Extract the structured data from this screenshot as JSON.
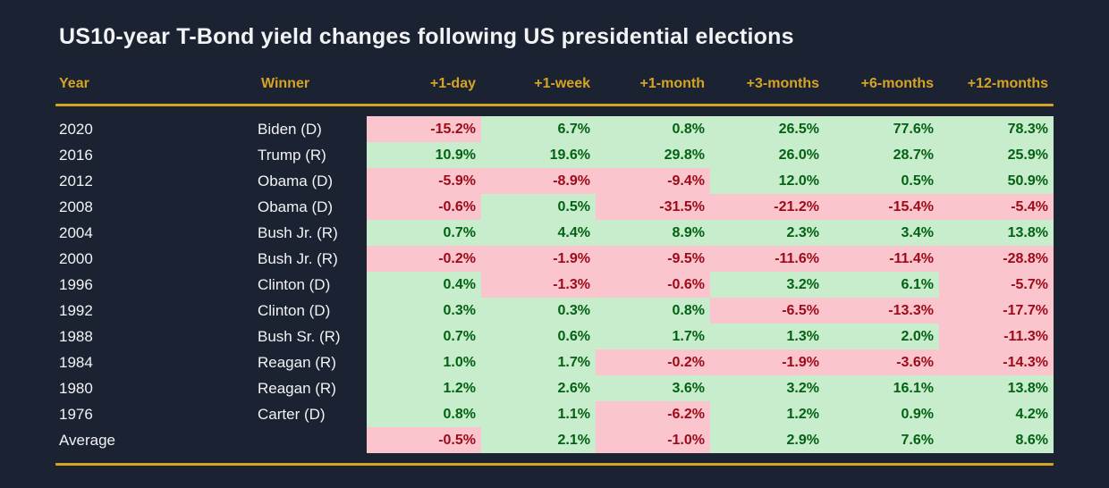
{
  "title": "US10-year T-Bond yield changes following US presidential elections",
  "colors": {
    "bg": "#1b2231",
    "accent": "#d5a425",
    "text": "#f2f3f5",
    "neg_fill": "#fbc5cd",
    "neg_text": "#9c0a18",
    "pos_fill": "#c7edcd",
    "pos_text": "#046112"
  },
  "chart_data": {
    "type": "table",
    "title": "US10-year T-Bond yield changes following US presidential elections",
    "columns": [
      "Year",
      "Winner",
      "+1-day",
      "+1-week",
      "+1-month",
      "+3-months",
      "+6-months",
      "+12-months"
    ],
    "conditional_format": {
      "negative": {
        "fill": "#fbc5cd",
        "text": "#9c0a18"
      },
      "positive": {
        "fill": "#c7edcd",
        "text": "#046112"
      }
    },
    "rows": [
      {
        "year": "2020",
        "winner": "Biden (D)",
        "values": [
          "-15.2%",
          "6.7%",
          "0.8%",
          "26.5%",
          "77.6%",
          "78.3%"
        ]
      },
      {
        "year": "2016",
        "winner": "Trump (R)",
        "values": [
          "10.9%",
          "19.6%",
          "29.8%",
          "26.0%",
          "28.7%",
          "25.9%"
        ]
      },
      {
        "year": "2012",
        "winner": "Obama (D)",
        "values": [
          "-5.9%",
          "-8.9%",
          "-9.4%",
          "12.0%",
          "0.5%",
          "50.9%"
        ]
      },
      {
        "year": "2008",
        "winner": "Obama (D)",
        "values": [
          "-0.6%",
          "0.5%",
          "-31.5%",
          "-21.2%",
          "-15.4%",
          "-5.4%"
        ]
      },
      {
        "year": "2004",
        "winner": "Bush Jr. (R)",
        "values": [
          "0.7%",
          "4.4%",
          "8.9%",
          "2.3%",
          "3.4%",
          "13.8%"
        ]
      },
      {
        "year": "2000",
        "winner": "Bush Jr. (R)",
        "values": [
          "-0.2%",
          "-1.9%",
          "-9.5%",
          "-11.6%",
          "-11.4%",
          "-28.8%"
        ]
      },
      {
        "year": "1996",
        "winner": "Clinton (D)",
        "values": [
          "0.4%",
          "-1.3%",
          "-0.6%",
          "3.2%",
          "6.1%",
          "-5.7%"
        ]
      },
      {
        "year": "1992",
        "winner": "Clinton (D)",
        "values": [
          "0.3%",
          "0.3%",
          "0.8%",
          "-6.5%",
          "-13.3%",
          "-17.7%"
        ]
      },
      {
        "year": "1988",
        "winner": "Bush Sr. (R)",
        "values": [
          "0.7%",
          "0.6%",
          "1.7%",
          "1.3%",
          "2.0%",
          "-11.3%"
        ]
      },
      {
        "year": "1984",
        "winner": "Reagan (R)",
        "values": [
          "1.0%",
          "1.7%",
          "-0.2%",
          "-1.9%",
          "-3.6%",
          "-14.3%"
        ]
      },
      {
        "year": "1980",
        "winner": "Reagan (R)",
        "values": [
          "1.2%",
          "2.6%",
          "3.6%",
          "3.2%",
          "16.1%",
          "13.8%"
        ]
      },
      {
        "year": "1976",
        "winner": "Carter (D)",
        "values": [
          "0.8%",
          "1.1%",
          "-6.2%",
          "1.2%",
          "0.9%",
          "4.2%"
        ]
      },
      {
        "year": "Average",
        "winner": "",
        "values": [
          "-0.5%",
          "2.1%",
          "-1.0%",
          "2.9%",
          "7.6%",
          "8.6%"
        ]
      }
    ]
  }
}
